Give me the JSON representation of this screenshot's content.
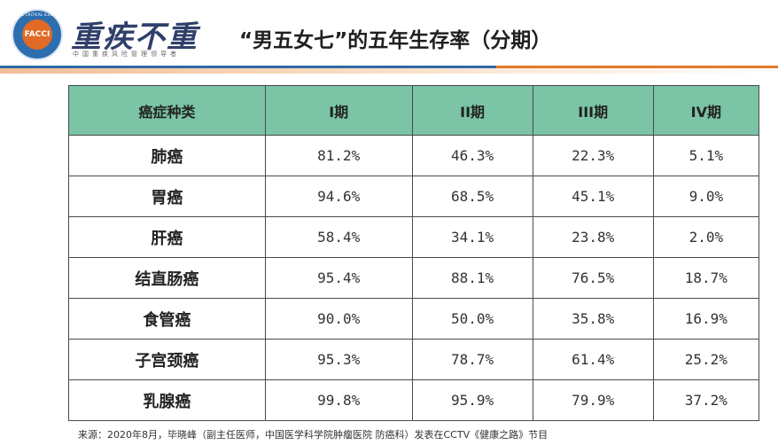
{
  "header": {
    "logo_text": "FACCI",
    "logo_ring_text": "FACE CRITICAL ILLNESS",
    "brand_name": "重疾不重",
    "brand_sub": "中国重疾风险管理领导者",
    "title": "“男五女七”的五年生存率（分期）",
    "colors": {
      "primary_blue": "#2f6aa6",
      "accent_orange": "#e07a2e",
      "table_header": "#7bc4a6"
    }
  },
  "table": {
    "headers": [
      "癌症种类",
      "I期",
      "II期",
      "III期",
      "IV期"
    ],
    "rows": [
      {
        "type": "肺癌",
        "values": [
          "81.2%",
          "46.3%",
          "22.3%",
          "5.1%"
        ]
      },
      {
        "type": "胃癌",
        "values": [
          "94.6%",
          "68.5%",
          "45.1%",
          "9.0%"
        ]
      },
      {
        "type": "肝癌",
        "values": [
          "58.4%",
          "34.1%",
          "23.8%",
          "2.0%"
        ]
      },
      {
        "type": "结直肠癌",
        "values": [
          "95.4%",
          "88.1%",
          "76.5%",
          "18.7%"
        ]
      },
      {
        "type": "食管癌",
        "values": [
          "90.0%",
          "50.0%",
          "35.8%",
          "16.9%"
        ]
      },
      {
        "type": "子宫颈癌",
        "values": [
          "95.3%",
          "78.7%",
          "61.4%",
          "25.2%"
        ]
      },
      {
        "type": "乳腺癌",
        "values": [
          "99.8%",
          "95.9%",
          "79.9%",
          "37.2%"
        ]
      }
    ]
  },
  "footer": {
    "source": "来源：2020年8月，毕晓峰（副主任医师，中国医学科学院肿瘤医院 防癌科）发表在CCTV《健康之路》节目"
  }
}
